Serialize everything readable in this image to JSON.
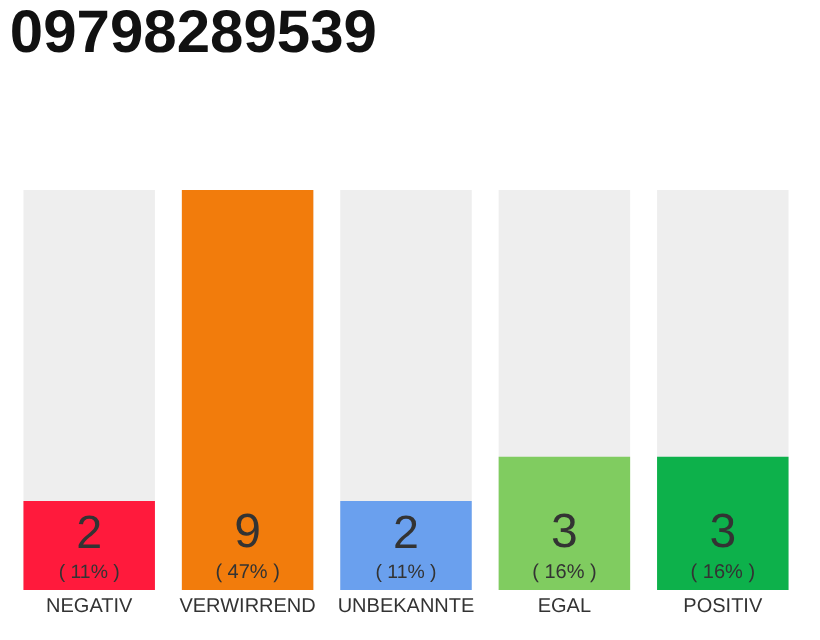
{
  "chart_data": {
    "type": "bar",
    "title": "09798289539",
    "categories": [
      "NEGATIV",
      "VERWIRREND",
      "UNBEKANNTE",
      "EGAL",
      "POSITIV"
    ],
    "values": [
      2,
      9,
      2,
      3,
      3
    ],
    "colors": [
      "#ff1a3c",
      "#f27c0c",
      "#6aa0ee",
      "#80cc60",
      "#0db14b"
    ],
    "value_labels": [
      "2\n( 11% )",
      "9\n( 47% )",
      "2\n( 11% )",
      "3\n( 16% )",
      "3\n( 16% )"
    ],
    "ylim": [
      0,
      9
    ],
    "tick_labels": "x",
    "grid": false,
    "legend": false
  }
}
